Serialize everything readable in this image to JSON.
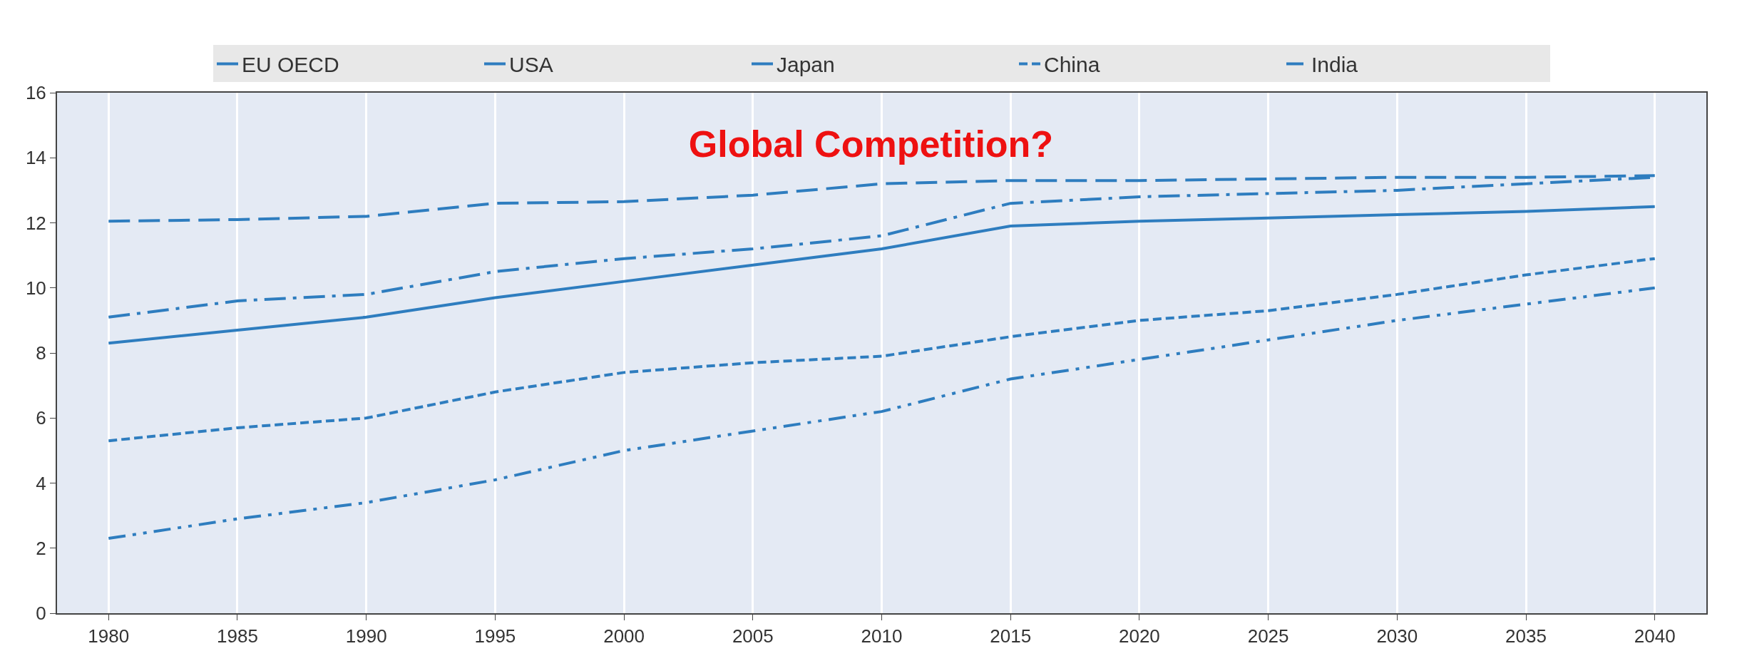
{
  "chart_data": {
    "type": "line",
    "title": "Global Competition?",
    "x": [
      1980,
      1985,
      1990,
      1995,
      2000,
      2005,
      2010,
      2015,
      2020,
      2025,
      2030,
      2035,
      2040
    ],
    "series": [
      {
        "name": "EU OECD",
        "color": "#2e7dbf",
        "line_style": "solid",
        "values": [
          8.3,
          8.7,
          9.1,
          9.7,
          10.2,
          10.7,
          11.2,
          11.9,
          12.05,
          12.15,
          12.25,
          12.35,
          12.5
        ]
      },
      {
        "name": "USA",
        "color": "#2e7dbf",
        "line_style": "dashed",
        "values": [
          12.05,
          12.1,
          12.2,
          12.6,
          12.65,
          12.85,
          13.2,
          13.3,
          13.3,
          13.35,
          13.4,
          13.4,
          13.45
        ]
      },
      {
        "name": "Japan",
        "color": "#2e7dbf",
        "line_style": "dashdot",
        "values": [
          9.1,
          9.6,
          9.8,
          10.5,
          10.9,
          11.2,
          11.6,
          12.6,
          12.8,
          12.9,
          13.0,
          13.2,
          13.4
        ]
      },
      {
        "name": "China",
        "color": "#2e7dbf",
        "line_style": "shortdash",
        "values": [
          5.3,
          5.7,
          6.0,
          6.8,
          7.4,
          7.7,
          7.9,
          8.5,
          9.0,
          9.3,
          9.8,
          10.4,
          10.9
        ]
      },
      {
        "name": "India",
        "color": "#2e7dbf",
        "line_style": "dashdotdot",
        "values": [
          2.3,
          2.9,
          3.4,
          4.1,
          5.0,
          5.6,
          6.2,
          7.2,
          7.8,
          8.4,
          9.0,
          9.5,
          10.0
        ]
      }
    ],
    "xlim": [
      1978,
      2042
    ],
    "xticks": [
      1980,
      1985,
      1990,
      1995,
      2000,
      2005,
      2010,
      2015,
      2020,
      2025,
      2030,
      2035,
      2040
    ],
    "ylim": [
      0,
      16
    ],
    "yticks": [
      0,
      2,
      4,
      6,
      8,
      10,
      12,
      14,
      16
    ],
    "grid": "x",
    "legend": "top",
    "marker": "none"
  }
}
